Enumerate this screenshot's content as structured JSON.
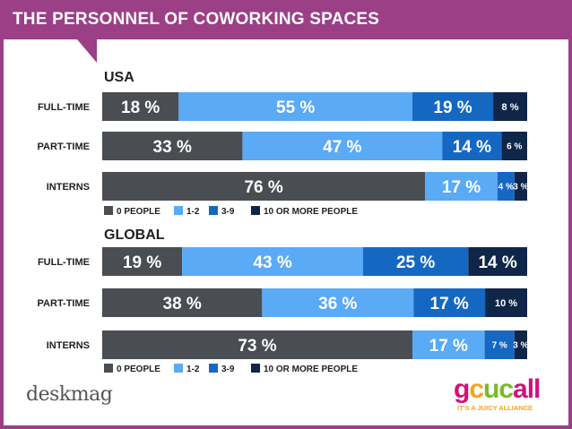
{
  "title": "THE PERSONNEL OF COWORKING SPACES",
  "colors": {
    "frame": "#9b3f86",
    "c0": "#4a4d52",
    "c1": "#5aaaf5",
    "c2": "#1568c2",
    "c3": "#0f2649"
  },
  "chart_data": [
    {
      "type": "bar",
      "orientation": "horizontal",
      "stacked": true,
      "percent_scale": true,
      "title": "USA",
      "categories": [
        "FULL-TIME",
        "PART-TIME",
        "INTERNS"
      ],
      "series": [
        {
          "name": "0 PEOPLE",
          "values": [
            18,
            33,
            76
          ],
          "labels": [
            "18 %",
            "33 %",
            "76 %"
          ]
        },
        {
          "name": "1-2",
          "values": [
            55,
            47,
            17
          ],
          "labels": [
            "55 %",
            "47 %",
            "17 %"
          ]
        },
        {
          "name": "3-9",
          "values": [
            19,
            14,
            4
          ],
          "labels": [
            "19 %",
            "14 %",
            "4 %"
          ]
        },
        {
          "name": "10 OR MORE PEOPLE",
          "values": [
            8,
            6,
            3
          ],
          "labels": [
            "8 %",
            "6 %",
            "3 %"
          ]
        }
      ]
    },
    {
      "type": "bar",
      "orientation": "horizontal",
      "stacked": true,
      "percent_scale": true,
      "title": "GLOBAL",
      "categories": [
        "FULL-TIME",
        "PART-TIME",
        "INTERNS"
      ],
      "series": [
        {
          "name": "0 PEOPLE",
          "values": [
            19,
            38,
            73
          ],
          "labels": [
            "19 %",
            "38 %",
            "73 %"
          ]
        },
        {
          "name": "1-2",
          "values": [
            43,
            36,
            17
          ],
          "labels": [
            "43 %",
            "36 %",
            "17 %"
          ]
        },
        {
          "name": "3-9",
          "values": [
            25,
            17,
            7
          ],
          "labels": [
            "25 %",
            "17 %",
            "7 %"
          ]
        },
        {
          "name": "10 OR MORE PEOPLE",
          "values": [
            14,
            10,
            3
          ],
          "labels": [
            "14 %",
            "10 %",
            "3 %"
          ]
        }
      ]
    }
  ],
  "logos": {
    "deskmag": "deskmag",
    "gcuc": {
      "g": "g",
      "c": "c",
      "u": "uc",
      "a": "all",
      "tagline": "IT'S A JUICY ALLIANCE"
    }
  }
}
